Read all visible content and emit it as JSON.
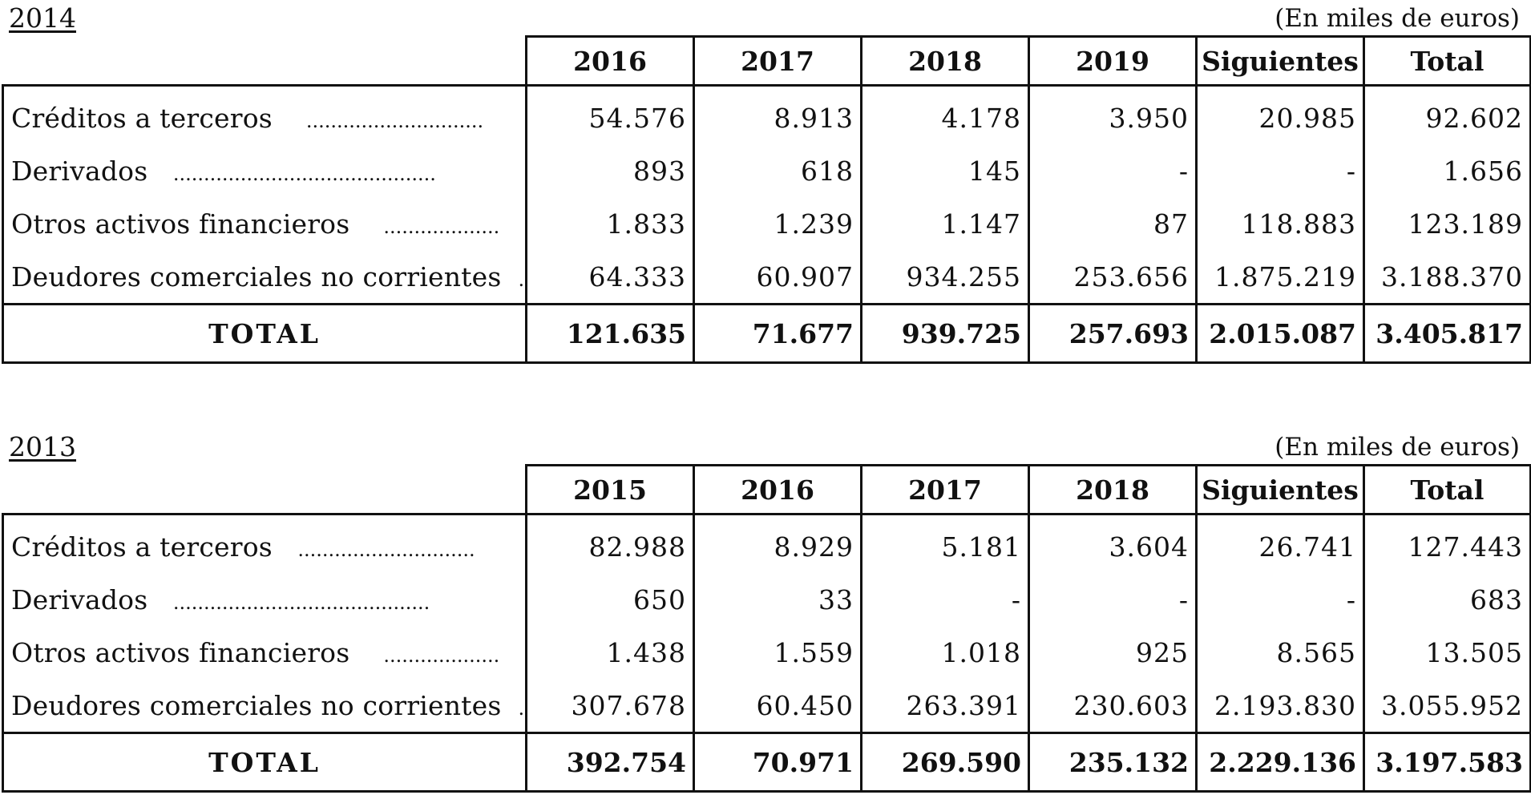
{
  "sections": [
    {
      "year": "2014",
      "unit": "(En miles de euros)",
      "columns": [
        "2016",
        "2017",
        "2018",
        "2019",
        "Siguientes",
        "Total"
      ],
      "rows": [
        {
          "label": "Créditos a terceros",
          "leader": ".............................",
          "values": [
            "54.576",
            "8.913",
            "4.178",
            "3.950",
            "20.985",
            "92.602"
          ]
        },
        {
          "label": "Derivados",
          "leader": "...........................................",
          "values": [
            "893",
            "618",
            "145",
            "-",
            "-",
            "1.656"
          ]
        },
        {
          "label": "Otros activos financieros",
          "leader": "...................",
          "values": [
            "1.833",
            "1.239",
            "1.147",
            "87",
            "118.883",
            "123.189"
          ]
        },
        {
          "label": "Deudores comerciales no corrientes",
          "leader": "...",
          "values": [
            "64.333",
            "60.907",
            "934.255",
            "253.656",
            "1.875.219",
            "3.188.370"
          ]
        }
      ],
      "total": {
        "label": "TOTAL",
        "values": [
          "121.635",
          "71.677",
          "939.725",
          "257.693",
          "2.015.087",
          "3.405.817"
        ]
      }
    },
    {
      "year": "2013",
      "unit": "(En miles de euros)",
      "columns": [
        "2015",
        "2016",
        "2017",
        "2018",
        "Siguientes",
        "Total"
      ],
      "rows": [
        {
          "label": "Créditos a terceros",
          "leader": ".............................",
          "values": [
            "82.988",
            "8.929",
            "5.181",
            "3.604",
            "26.741",
            "127.443"
          ]
        },
        {
          "label": "Derivados",
          "leader": "..........................................",
          "values": [
            "650",
            "33",
            "-",
            "-",
            "-",
            "683"
          ]
        },
        {
          "label": "Otros activos financieros",
          "leader": "...................",
          "values": [
            "1.438",
            "1.559",
            "1.018",
            "925",
            "8.565",
            "13.505"
          ]
        },
        {
          "label": "Deudores comerciales no corrientes",
          "leader": "...",
          "values": [
            "307.678",
            "60.450",
            "263.391",
            "230.603",
            "2.193.830",
            "3.055.952"
          ]
        }
      ],
      "total": {
        "label": "TOTAL",
        "values": [
          "392.754",
          "70.971",
          "269.590",
          "235.132",
          "2.229.136",
          "3.197.583"
        ]
      }
    }
  ]
}
